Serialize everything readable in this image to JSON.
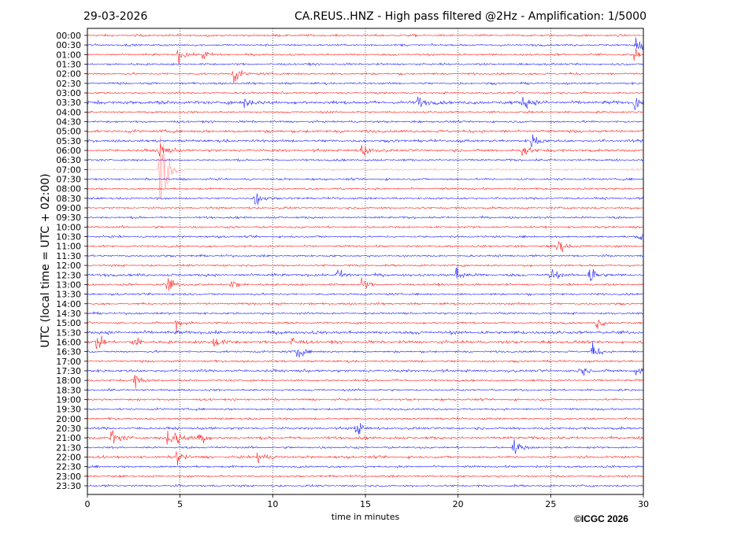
{
  "chart_data": {
    "type": "line",
    "subtype": "helicorder",
    "date": "29-03-2026",
    "title": "CA.REUS..HNZ - High pass filtered @2Hz - Amplification: 1/5000",
    "xlabel": "time in minutes",
    "ylabel": "UTC (local time = UTC + 02:00)",
    "xlim": [
      0,
      30
    ],
    "xticks": [
      "0",
      "5",
      "10",
      "15",
      "20",
      "25",
      "30"
    ],
    "grid": "vertical dotted lines every 5 minutes",
    "row_labels": [
      "00:00",
      "00:30",
      "01:00",
      "01:30",
      "02:00",
      "02:30",
      "03:00",
      "03:30",
      "04:00",
      "04:30",
      "05:00",
      "05:30",
      "06:00",
      "06:30",
      "07:00",
      "07:30",
      "08:00",
      "08:30",
      "09:00",
      "09:30",
      "10:00",
      "10:30",
      "11:00",
      "11:30",
      "12:00",
      "12:30",
      "13:00",
      "13:30",
      "14:00",
      "14:30",
      "15:00",
      "15:30",
      "16:00",
      "16:30",
      "17:00",
      "17:30",
      "18:00",
      "18:30",
      "19:00",
      "19:30",
      "20:00",
      "20:30",
      "21:00",
      "21:30",
      "22:00",
      "22:30",
      "23:00",
      "23:30"
    ],
    "colors": [
      "#ff0000",
      "#0000ff"
    ],
    "events": [
      {
        "row": "00:30",
        "minute": 29.6,
        "amp": 9
      },
      {
        "row": "01:00",
        "minute": 4.9,
        "amp": 7
      },
      {
        "row": "01:00",
        "minute": 6.2,
        "amp": 6
      },
      {
        "row": "01:00",
        "minute": 29.5,
        "amp": 5
      },
      {
        "row": "02:00",
        "minute": 7.9,
        "amp": 9
      },
      {
        "row": "03:30",
        "minute": 8.5,
        "amp": 6
      },
      {
        "row": "03:30",
        "minute": 17.8,
        "amp": 7
      },
      {
        "row": "03:30",
        "minute": 23.5,
        "amp": 8
      },
      {
        "row": "03:30",
        "minute": 29.5,
        "amp": 8
      },
      {
        "row": "05:30",
        "minute": 24.0,
        "amp": 8
      },
      {
        "row": "06:00",
        "minute": 3.9,
        "amp": 9
      },
      {
        "row": "06:00",
        "minute": 14.8,
        "amp": 8
      },
      {
        "row": "06:00",
        "minute": 23.5,
        "amp": 8
      },
      {
        "row": "07:00",
        "minute": 3.9,
        "amp": 60
      },
      {
        "row": "08:30",
        "minute": 9.0,
        "amp": 10
      },
      {
        "row": "10:30",
        "minute": 29.8,
        "amp": 6
      },
      {
        "row": "11:00",
        "minute": 25.3,
        "amp": 11
      },
      {
        "row": "12:30",
        "minute": 13.5,
        "amp": 6
      },
      {
        "row": "12:30",
        "minute": 19.9,
        "amp": 8
      },
      {
        "row": "12:30",
        "minute": 25.0,
        "amp": 7
      },
      {
        "row": "12:30",
        "minute": 27.1,
        "amp": 12
      },
      {
        "row": "13:00",
        "minute": 4.3,
        "amp": 10
      },
      {
        "row": "13:00",
        "minute": 7.7,
        "amp": 9
      },
      {
        "row": "13:00",
        "minute": 14.8,
        "amp": 6
      },
      {
        "row": "15:00",
        "minute": 4.8,
        "amp": 6
      },
      {
        "row": "15:00",
        "minute": 27.5,
        "amp": 6
      },
      {
        "row": "16:00",
        "minute": 0.5,
        "amp": 8
      },
      {
        "row": "16:00",
        "minute": 2.5,
        "amp": 6
      },
      {
        "row": "16:00",
        "minute": 6.8,
        "amp": 7
      },
      {
        "row": "16:00",
        "minute": 11.0,
        "amp": 6
      },
      {
        "row": "16:30",
        "minute": 11.3,
        "amp": 8
      },
      {
        "row": "16:30",
        "minute": 27.2,
        "amp": 9
      },
      {
        "row": "17:30",
        "minute": 26.5,
        "amp": 6
      },
      {
        "row": "17:30",
        "minute": 29.5,
        "amp": 6
      },
      {
        "row": "18:00",
        "minute": 2.5,
        "amp": 8
      },
      {
        "row": "20:30",
        "minute": 14.5,
        "amp": 8
      },
      {
        "row": "21:00",
        "minute": 1.3,
        "amp": 10
      },
      {
        "row": "21:00",
        "minute": 4.3,
        "amp": 8
      },
      {
        "row": "21:00",
        "minute": 4.8,
        "amp": 8
      },
      {
        "row": "21:00",
        "minute": 6.0,
        "amp": 8
      },
      {
        "row": "21:30",
        "minute": 23.0,
        "amp": 8
      },
      {
        "row": "22:00",
        "minute": 4.8,
        "amp": 8
      },
      {
        "row": "22:00",
        "minute": 9.2,
        "amp": 8
      }
    ]
  },
  "copyright": "©ICGC 2026"
}
